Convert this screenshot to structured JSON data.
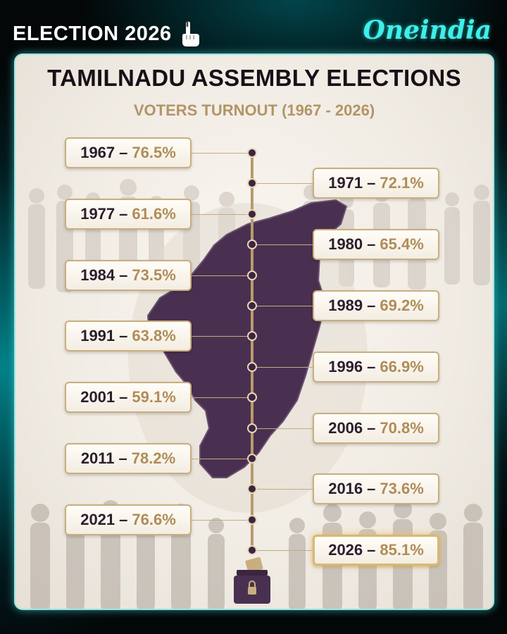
{
  "header": {
    "title": "ELECTION 2026",
    "brand": "Oneindia"
  },
  "card": {
    "headline": "TAMILNADU ASSEMBLY ELECTIONS",
    "subheadline": "VOTERS TURNOUT (1967 - 2026)"
  },
  "icons": {
    "title_icon": "voting-finger-icon",
    "footer_icon": "ballot-box-icon"
  },
  "colors": {
    "accent_teal": "#3ef0ea",
    "year_text": "#2a1e2d",
    "percent_text": "#b08c58",
    "map_fill": "#4a3050"
  },
  "timeline": [
    {
      "year": "1967",
      "separator": "–",
      "turnout": "76.5%",
      "side": "left"
    },
    {
      "year": "1971",
      "separator": "–",
      "turnout": "72.1%",
      "side": "right"
    },
    {
      "year": "1977",
      "separator": "–",
      "turnout": "61.6%",
      "side": "left"
    },
    {
      "year": "1980",
      "separator": "–",
      "turnout": "65.4%",
      "side": "right"
    },
    {
      "year": "1984",
      "separator": "–",
      "turnout": "73.5%",
      "side": "left"
    },
    {
      "year": "1989",
      "separator": "–",
      "turnout": "69.2%",
      "side": "right"
    },
    {
      "year": "1991",
      "separator": "–",
      "turnout": "63.8%",
      "side": "left"
    },
    {
      "year": "1996",
      "separator": "–",
      "turnout": "66.9%",
      "side": "right"
    },
    {
      "year": "2001",
      "separator": "–",
      "turnout": "59.1%",
      "side": "left"
    },
    {
      "year": "2006",
      "separator": "–",
      "turnout": "70.8%",
      "side": "right"
    },
    {
      "year": "2011",
      "separator": "–",
      "turnout": "78.2%",
      "side": "left"
    },
    {
      "year": "2016",
      "separator": "–",
      "turnout": "73.6%",
      "side": "right"
    },
    {
      "year": "2021",
      "separator": "–",
      "turnout": "76.6%",
      "side": "left"
    },
    {
      "year": "2026",
      "separator": "–",
      "turnout": "85.1%",
      "side": "right",
      "highlight": true
    }
  ]
}
